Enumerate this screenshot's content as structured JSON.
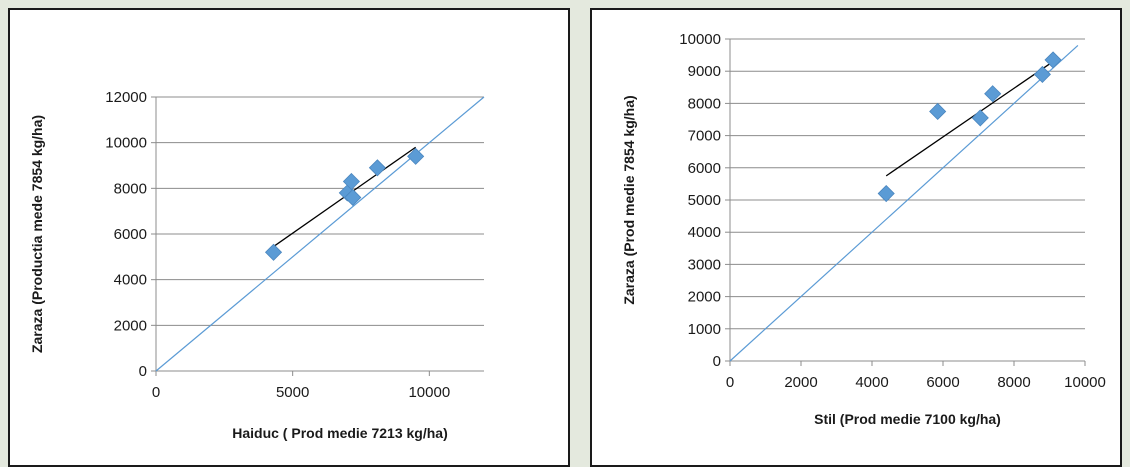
{
  "chart_data": [
    {
      "type": "scatter",
      "title": "",
      "xlabel": "Haiduc ( Prod medie 7213 kg/ha)",
      "ylabel": "Zaraza (Productia mede 7854 kg/ha)",
      "xlim": [
        0,
        12000
      ],
      "ylim": [
        0,
        12000
      ],
      "xticks": [
        0,
        5000,
        10000
      ],
      "yticks": [
        0,
        2000,
        4000,
        6000,
        8000,
        10000,
        12000
      ],
      "xtick_labels": [
        "0",
        "5000",
        "10000"
      ],
      "ytick_labels": [
        "0",
        "2000",
        "4000",
        "6000",
        "8000",
        "10000",
        "12000"
      ],
      "grid": "horizontal",
      "points": [
        {
          "x": 4300,
          "y": 5200
        },
        {
          "x": 7000,
          "y": 7800
        },
        {
          "x": 7150,
          "y": 8300
        },
        {
          "x": 7200,
          "y": 7600
        },
        {
          "x": 8100,
          "y": 8900
        },
        {
          "x": 9500,
          "y": 9400
        }
      ],
      "trendline": {
        "x": [
          4300,
          9500
        ],
        "y": [
          5450,
          9800
        ]
      },
      "reference_line": {
        "x": [
          0,
          12000
        ],
        "y": [
          0,
          12000
        ]
      },
      "colors": {
        "marker": "#5b9bd5",
        "trend": "#000000",
        "reference": "#5b9bd5",
        "grid": "#8c8c8c"
      }
    },
    {
      "type": "scatter",
      "title": "",
      "xlabel": "Stil (Prod medie 7100 kg/ha)",
      "ylabel": "Zaraza (Prod medie 7854 kg/ha)",
      "xlim": [
        0,
        10000
      ],
      "ylim": [
        0,
        10000
      ],
      "xticks": [
        0,
        2000,
        4000,
        6000,
        8000,
        10000
      ],
      "yticks": [
        0,
        1000,
        2000,
        3000,
        4000,
        5000,
        6000,
        7000,
        8000,
        9000,
        10000
      ],
      "xtick_labels": [
        "0",
        "2000",
        "4000",
        "6000",
        "8000",
        "10000"
      ],
      "ytick_labels": [
        "0",
        "1000",
        "2000",
        "3000",
        "4000",
        "5000",
        "6000",
        "7000",
        "8000",
        "9000",
        "10000"
      ],
      "grid": "horizontal",
      "points": [
        {
          "x": 4400,
          "y": 5200
        },
        {
          "x": 5850,
          "y": 7750
        },
        {
          "x": 7050,
          "y": 7550
        },
        {
          "x": 7400,
          "y": 8300
        },
        {
          "x": 8800,
          "y": 8900
        },
        {
          "x": 9100,
          "y": 9350
        }
      ],
      "trendline": {
        "x": [
          4400,
          9100
        ],
        "y": [
          5750,
          9300
        ]
      },
      "reference_line": {
        "x": [
          0,
          9800
        ],
        "y": [
          0,
          9800
        ]
      },
      "colors": {
        "marker": "#5b9bd5",
        "trend": "#000000",
        "reference": "#5b9bd5",
        "grid": "#8c8c8c"
      }
    }
  ]
}
